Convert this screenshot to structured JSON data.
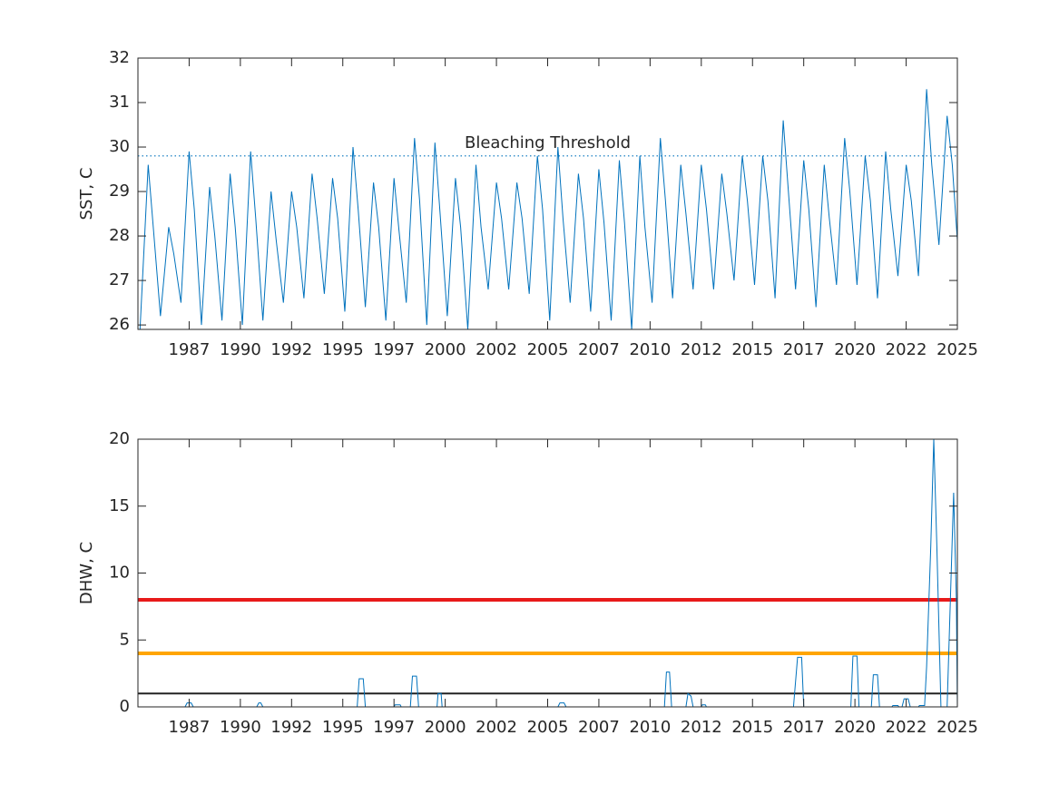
{
  "chart_data": [
    {
      "type": "line",
      "ylabel": "SST, C",
      "xlim": [
        1985,
        2025
      ],
      "ylim": [
        25.9,
        32
      ],
      "xticks": [
        {
          "value": 1987.5,
          "label": "1987"
        },
        1990,
        {
          "value": 1992.5,
          "label": "1992"
        },
        1995,
        {
          "value": 1997.5,
          "label": "1997"
        },
        2000,
        {
          "value": 2002.5,
          "label": "2002"
        },
        2005,
        {
          "value": 2007.5,
          "label": "2007"
        },
        2010,
        {
          "value": 2012.5,
          "label": "2012"
        },
        2015,
        {
          "value": 2017.5,
          "label": "2017"
        },
        2020,
        {
          "value": 2022.5,
          "label": "2022"
        },
        2025
      ],
      "yticks": [
        26,
        27,
        28,
        29,
        30,
        31,
        32
      ],
      "threshold": {
        "value": 29.8,
        "label": "Bleaching Threshold",
        "color": "#0072bd"
      },
      "x": [
        1985.1,
        1985.5,
        1985.75,
        1986.1,
        1986.5,
        1986.75,
        1987.1,
        1987.5,
        1987.75,
        1988.1,
        1988.5,
        1988.75,
        1989.1,
        1989.5,
        1989.75,
        1990.1,
        1990.5,
        1990.75,
        1991.1,
        1991.5,
        1991.75,
        1992.1,
        1992.5,
        1992.75,
        1993.1,
        1993.5,
        1993.75,
        1994.1,
        1994.5,
        1994.75,
        1995.1,
        1995.5,
        1995.75,
        1996.1,
        1996.5,
        1996.75,
        1997.1,
        1997.5,
        1997.75,
        1998.1,
        1998.5,
        1998.75,
        1999.1,
        1999.5,
        1999.75,
        2000.1,
        2000.5,
        2000.75,
        2001.1,
        2001.5,
        2001.75,
        2002.1,
        2002.5,
        2002.75,
        2003.1,
        2003.5,
        2003.75,
        2004.1,
        2004.5,
        2004.75,
        2005.1,
        2005.5,
        2005.75,
        2006.1,
        2006.5,
        2006.75,
        2007.1,
        2007.5,
        2007.75,
        2008.1,
        2008.5,
        2008.75,
        2009.1,
        2009.5,
        2009.75,
        2010.1,
        2010.5,
        2010.75,
        2011.1,
        2011.5,
        2011.75,
        2012.1,
        2012.5,
        2012.75,
        2013.1,
        2013.5,
        2013.75,
        2014.1,
        2014.5,
        2014.75,
        2015.1,
        2015.5,
        2015.75,
        2016.1,
        2016.5,
        2016.75,
        2017.1,
        2017.5,
        2017.75,
        2018.1,
        2018.5,
        2018.75,
        2019.1,
        2019.5,
        2019.75,
        2020.1,
        2020.5,
        2020.75,
        2021.1,
        2021.5,
        2021.75,
        2022.1,
        2022.5,
        2022.75,
        2023.1,
        2023.5,
        2023.75,
        2024.1,
        2024.5,
        2024.75,
        2025
      ],
      "series": [
        {
          "color": "#0072bd",
          "values": [
            25.9,
            29.6,
            28.2,
            26.2,
            28.2,
            27.6,
            26.5,
            29.9,
            28.6,
            26.0,
            29.1,
            28.0,
            26.1,
            29.4,
            28.2,
            26.0,
            29.9,
            28.4,
            26.1,
            29.0,
            27.9,
            26.5,
            29.0,
            28.2,
            26.6,
            29.4,
            28.4,
            26.7,
            29.3,
            28.4,
            26.3,
            30.0,
            28.6,
            26.4,
            29.2,
            28.2,
            26.1,
            29.3,
            28.1,
            26.5,
            30.2,
            28.8,
            26.0,
            30.1,
            28.5,
            26.2,
            29.3,
            28.2,
            25.9,
            29.6,
            28.2,
            26.8,
            29.2,
            28.4,
            26.8,
            29.2,
            28.4,
            26.7,
            29.8,
            28.6,
            26.1,
            30.0,
            28.4,
            26.5,
            29.4,
            28.4,
            26.3,
            29.5,
            28.3,
            26.1,
            29.7,
            28.3,
            25.9,
            29.8,
            28.2,
            26.5,
            30.2,
            28.8,
            26.6,
            29.6,
            28.5,
            26.8,
            29.6,
            28.6,
            26.8,
            29.4,
            28.5,
            27.0,
            29.8,
            28.8,
            26.9,
            29.8,
            28.8,
            26.6,
            30.6,
            29.0,
            26.8,
            29.7,
            28.6,
            26.4,
            29.6,
            28.4,
            26.9,
            30.2,
            29.0,
            26.9,
            29.8,
            28.8,
            26.6,
            29.9,
            28.6,
            27.1,
            29.6,
            28.8,
            27.1,
            31.3,
            29.6,
            27.8,
            30.7,
            29.6,
            27.9
          ]
        }
      ]
    },
    {
      "type": "line",
      "ylabel": "DHW, C",
      "xlim": [
        1985,
        2025
      ],
      "ylim": [
        0,
        20
      ],
      "xticks": [
        {
          "value": 1987.5,
          "label": "1987"
        },
        1990,
        {
          "value": 1992.5,
          "label": "1992"
        },
        1995,
        {
          "value": 1997.5,
          "label": "1997"
        },
        2000,
        {
          "value": 2002.5,
          "label": "2002"
        },
        2005,
        {
          "value": 2007.5,
          "label": "2007"
        },
        2010,
        {
          "value": 2012.5,
          "label": "2012"
        },
        2015,
        {
          "value": 2017.5,
          "label": "2017"
        },
        2020,
        {
          "value": 2022.5,
          "label": "2022"
        },
        2025
      ],
      "yticks": [
        0,
        5,
        10,
        15,
        20
      ],
      "hlines": [
        {
          "value": 8,
          "color": "#e81a1a"
        },
        {
          "value": 4,
          "color": "#ffa500"
        },
        {
          "value": 1,
          "color": "#222222"
        }
      ],
      "x": [
        1985,
        1987.3,
        1987.4,
        1987.6,
        1987.7,
        1990.8,
        1990.9,
        1991.0,
        1991.1,
        1995.7,
        1995.8,
        1996.0,
        1996.1,
        1997.5,
        1997.55,
        1997.8,
        1997.85,
        1998.3,
        1998.4,
        1998.6,
        1998.7,
        1999.6,
        1999.65,
        1999.8,
        1999.85,
        2005.5,
        2005.6,
        2005.8,
        2005.9,
        2010.7,
        2010.8,
        2010.95,
        2011.05,
        2011.75,
        2011.85,
        2012.0,
        2012.1,
        2012.5,
        2012.55,
        2012.7,
        2012.75,
        2017.0,
        2017.2,
        2017.4,
        2017.5,
        2019.8,
        2019.9,
        2020.1,
        2020.2,
        2020.8,
        2020.9,
        2021.1,
        2021.2,
        2021.8,
        2021.85,
        2022.1,
        2022.15,
        2022.3,
        2022.4,
        2022.6,
        2022.7,
        2023.1,
        2023.15,
        2023.4,
        2023.5,
        2023.7,
        2023.85,
        2024.0,
        2024.2,
        2024.5,
        2024.7,
        2024.82,
        2024.95,
        2025
      ],
      "series": [
        {
          "color": "#0072bd",
          "values": [
            0,
            0,
            0.3,
            0.3,
            0,
            0,
            0.3,
            0.3,
            0,
            0,
            2.1,
            2.1,
            0,
            0,
            0.15,
            0.15,
            0,
            0,
            2.3,
            2.3,
            0,
            0,
            1.0,
            1.0,
            0,
            0,
            0.3,
            0.3,
            0,
            0,
            2.6,
            2.6,
            0,
            0,
            1.0,
            0.8,
            0,
            0,
            0.15,
            0.15,
            0,
            0,
            3.7,
            3.7,
            0,
            0,
            3.8,
            3.8,
            0,
            0,
            2.4,
            2.4,
            0,
            0,
            0.1,
            0.1,
            0,
            0,
            0.6,
            0.6,
            0,
            0,
            0.1,
            0.1,
            3,
            12,
            20,
            12,
            0,
            0,
            10,
            16,
            8,
            0
          ]
        }
      ]
    }
  ]
}
